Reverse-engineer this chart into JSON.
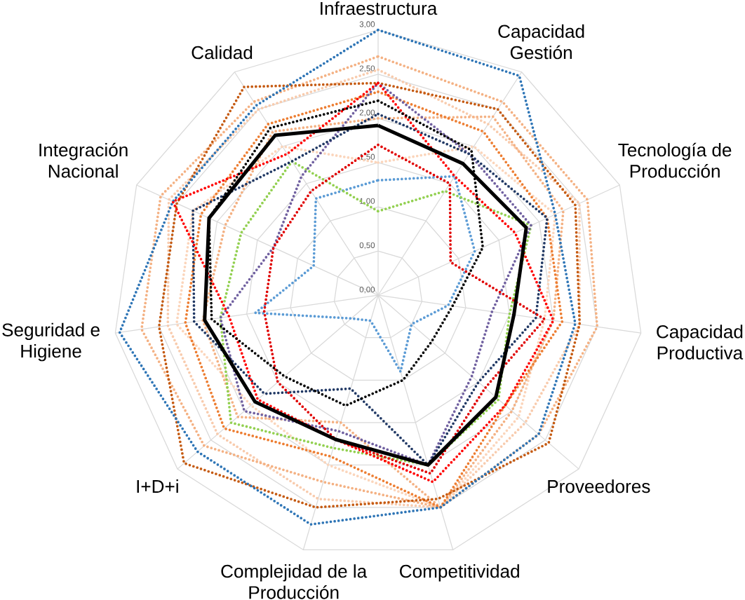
{
  "chart_data": {
    "type": "radar",
    "categories": [
      "Infraestructura",
      "Capacidad Gestión",
      "Tecnología de Producción",
      "Capacidad Productiva",
      "Proveedores",
      "Competitividad",
      "Complejidad de la Producción",
      "I+D+i",
      "Seguridad e Higiene",
      "Integración Nacional",
      "Calidad"
    ],
    "ylim": [
      0,
      3
    ],
    "yticks": [
      {
        "value": 0,
        "label": "0,00"
      },
      {
        "value": 0.5,
        "label": "0,50"
      },
      {
        "value": 1,
        "label": "1,00"
      },
      {
        "value": 1.5,
        "label": "1,50"
      },
      {
        "value": 2,
        "label": "2,00"
      },
      {
        "value": 2.5,
        "label": "2,50"
      },
      {
        "value": 3,
        "label": "3,00"
      }
    ],
    "grid": true,
    "series": [
      {
        "color": "#f8cbad",
        "line_style": "dotted",
        "values": [
          2.55,
          2.3,
          2.5,
          2.3,
          2.2,
          2.5,
          2.4,
          2.4,
          2.4,
          2.6,
          2.5
        ]
      },
      {
        "color": "#fbd5bb",
        "line_style": "dotted",
        "values": [
          1.5,
          2.0,
          2.2,
          1.9,
          2.1,
          2.5,
          2.0,
          1.9,
          2.3,
          2.3,
          2.0
        ]
      },
      {
        "color": "#f4b183",
        "line_style": "dotted",
        "values": [
          2.7,
          2.6,
          2.6,
          2.5,
          2.4,
          2.5,
          2.2,
          2.6,
          2.7,
          2.7,
          2.6
        ]
      },
      {
        "color": "#f4b183",
        "line_style": "dotted",
        "values": [
          2.0,
          2.4,
          2.3,
          2.0,
          2.0,
          2.5,
          1.5,
          2.1,
          2.0,
          1.9,
          2.2
        ]
      },
      {
        "color": "#ed7d31",
        "line_style": "dotted",
        "values": [
          2.3,
          2.2,
          2.1,
          2.1,
          1.9,
          2.5,
          1.9,
          2.3,
          2.2,
          2.2,
          2.3
        ]
      },
      {
        "color": "#c55a11",
        "line_style": "dotted",
        "values": [
          2.4,
          2.5,
          2.45,
          2.3,
          2.55,
          2.4,
          2.5,
          2.9,
          2.5,
          2.5,
          2.8
        ]
      },
      {
        "color": "#2e75b6",
        "line_style": "dotted",
        "values": [
          3.0,
          2.95,
          2.2,
          2.25,
          2.4,
          2.5,
          2.7,
          2.7,
          2.95,
          2.55,
          2.55
        ]
      },
      {
        "color": "#5b9bd5",
        "line_style": "dotted",
        "values": [
          1.3,
          1.6,
          1.2,
          0.8,
          0.5,
          0.9,
          0.3,
          0.4,
          1.4,
          0.8,
          1.3
        ]
      },
      {
        "color": "#92d050",
        "line_style": "dotted",
        "values": [
          0.95,
          1.4,
          1.9,
          1.5,
          1.8,
          2.0,
          1.8,
          2.2,
          1.8,
          1.7,
          1.8
        ]
      },
      {
        "color": "#7060a0",
        "line_style": "dotted",
        "values": [
          2.4,
          1.9,
          1.9,
          1.3,
          1.4,
          2.0,
          1.6,
          2.0,
          1.8,
          1.3,
          1.6
        ]
      },
      {
        "color": "#203864",
        "line_style": "dotted",
        "values": [
          2.05,
          1.9,
          2.1,
          1.8,
          1.5,
          2.0,
          1.1,
          1.7,
          2.1,
          2.3,
          1.8
        ]
      },
      {
        "color": "#ff0000",
        "line_style": "dotted",
        "values": [
          2.4,
          1.6,
          1.7,
          2.0,
          1.9,
          2.2,
          1.7,
          1.8,
          1.7,
          2.55,
          1.9
        ]
      },
      {
        "color": "#e00000",
        "line_style": "dotted",
        "values": [
          1.7,
          1.5,
          0.9,
          1.9,
          1.6,
          2.1,
          1.7,
          1.5,
          1.3,
          1.3,
          1.4
        ]
      },
      {
        "color": "#000000",
        "line_style": "dotted",
        "values": [
          2.2,
          1.95,
          1.3,
          0.85,
          0.8,
          1.0,
          1.3,
          1.4,
          1.9,
          2.1,
          2.25
        ]
      },
      {
        "color": "#000000",
        "line_style": "solid",
        "values": [
          1.92,
          1.77,
          1.84,
          1.55,
          1.76,
          2.0,
          1.7,
          1.84,
          1.98,
          2.1,
          2.15
        ]
      }
    ]
  }
}
